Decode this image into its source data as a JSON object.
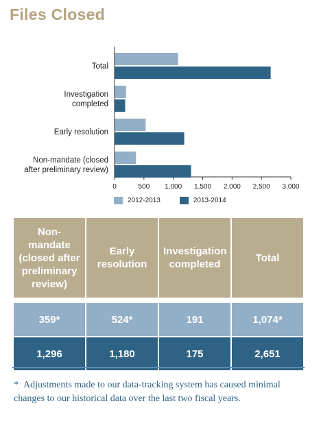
{
  "page": {
    "title": "Files Closed"
  },
  "colors": {
    "series_2012_2013": "#93afc8",
    "series_2013_2014": "#2e6385",
    "title": "#b5a17f",
    "table_header_bg": "#b9ad90"
  },
  "chart_data": {
    "type": "bar",
    "orientation": "horizontal",
    "categories": [
      "Total",
      "Investigation completed",
      "Early resolution",
      "Non-mandate (closed after preliminary review)"
    ],
    "category_lines": [
      [
        "Total"
      ],
      [
        "Investigation",
        "completed"
      ],
      [
        "Early resolution"
      ],
      [
        "Non-mandate (closed",
        "after preliminary review)"
      ]
    ],
    "series": [
      {
        "name": "2012-2013",
        "values": [
          1074,
          191,
          524,
          359
        ]
      },
      {
        "name": "2013-2014",
        "values": [
          2651,
          175,
          1180,
          1296
        ]
      }
    ],
    "xlim": [
      0,
      3000
    ],
    "xticks": [
      "0",
      "500",
      "1,000",
      "1,500",
      "2,000",
      "2,500",
      "3,000"
    ],
    "grid": false,
    "legend_position": "bottom"
  },
  "legend": [
    {
      "label": "2012-2013"
    },
    {
      "label": "2013-2014"
    }
  ],
  "table": {
    "headers": [
      "Non-mandate (closed after preliminary review)",
      "Early resolution",
      "Investigation completed",
      "Total"
    ],
    "rows": [
      [
        "359*",
        "524*",
        "191",
        "1,074*"
      ],
      [
        "1,296",
        "1,180",
        "175",
        "2,651"
      ]
    ]
  },
  "footnote": {
    "marker": "*",
    "text": "Adjustments made to our data-tracking system has caused minimal changes to our historical data over the last two fiscal years."
  }
}
